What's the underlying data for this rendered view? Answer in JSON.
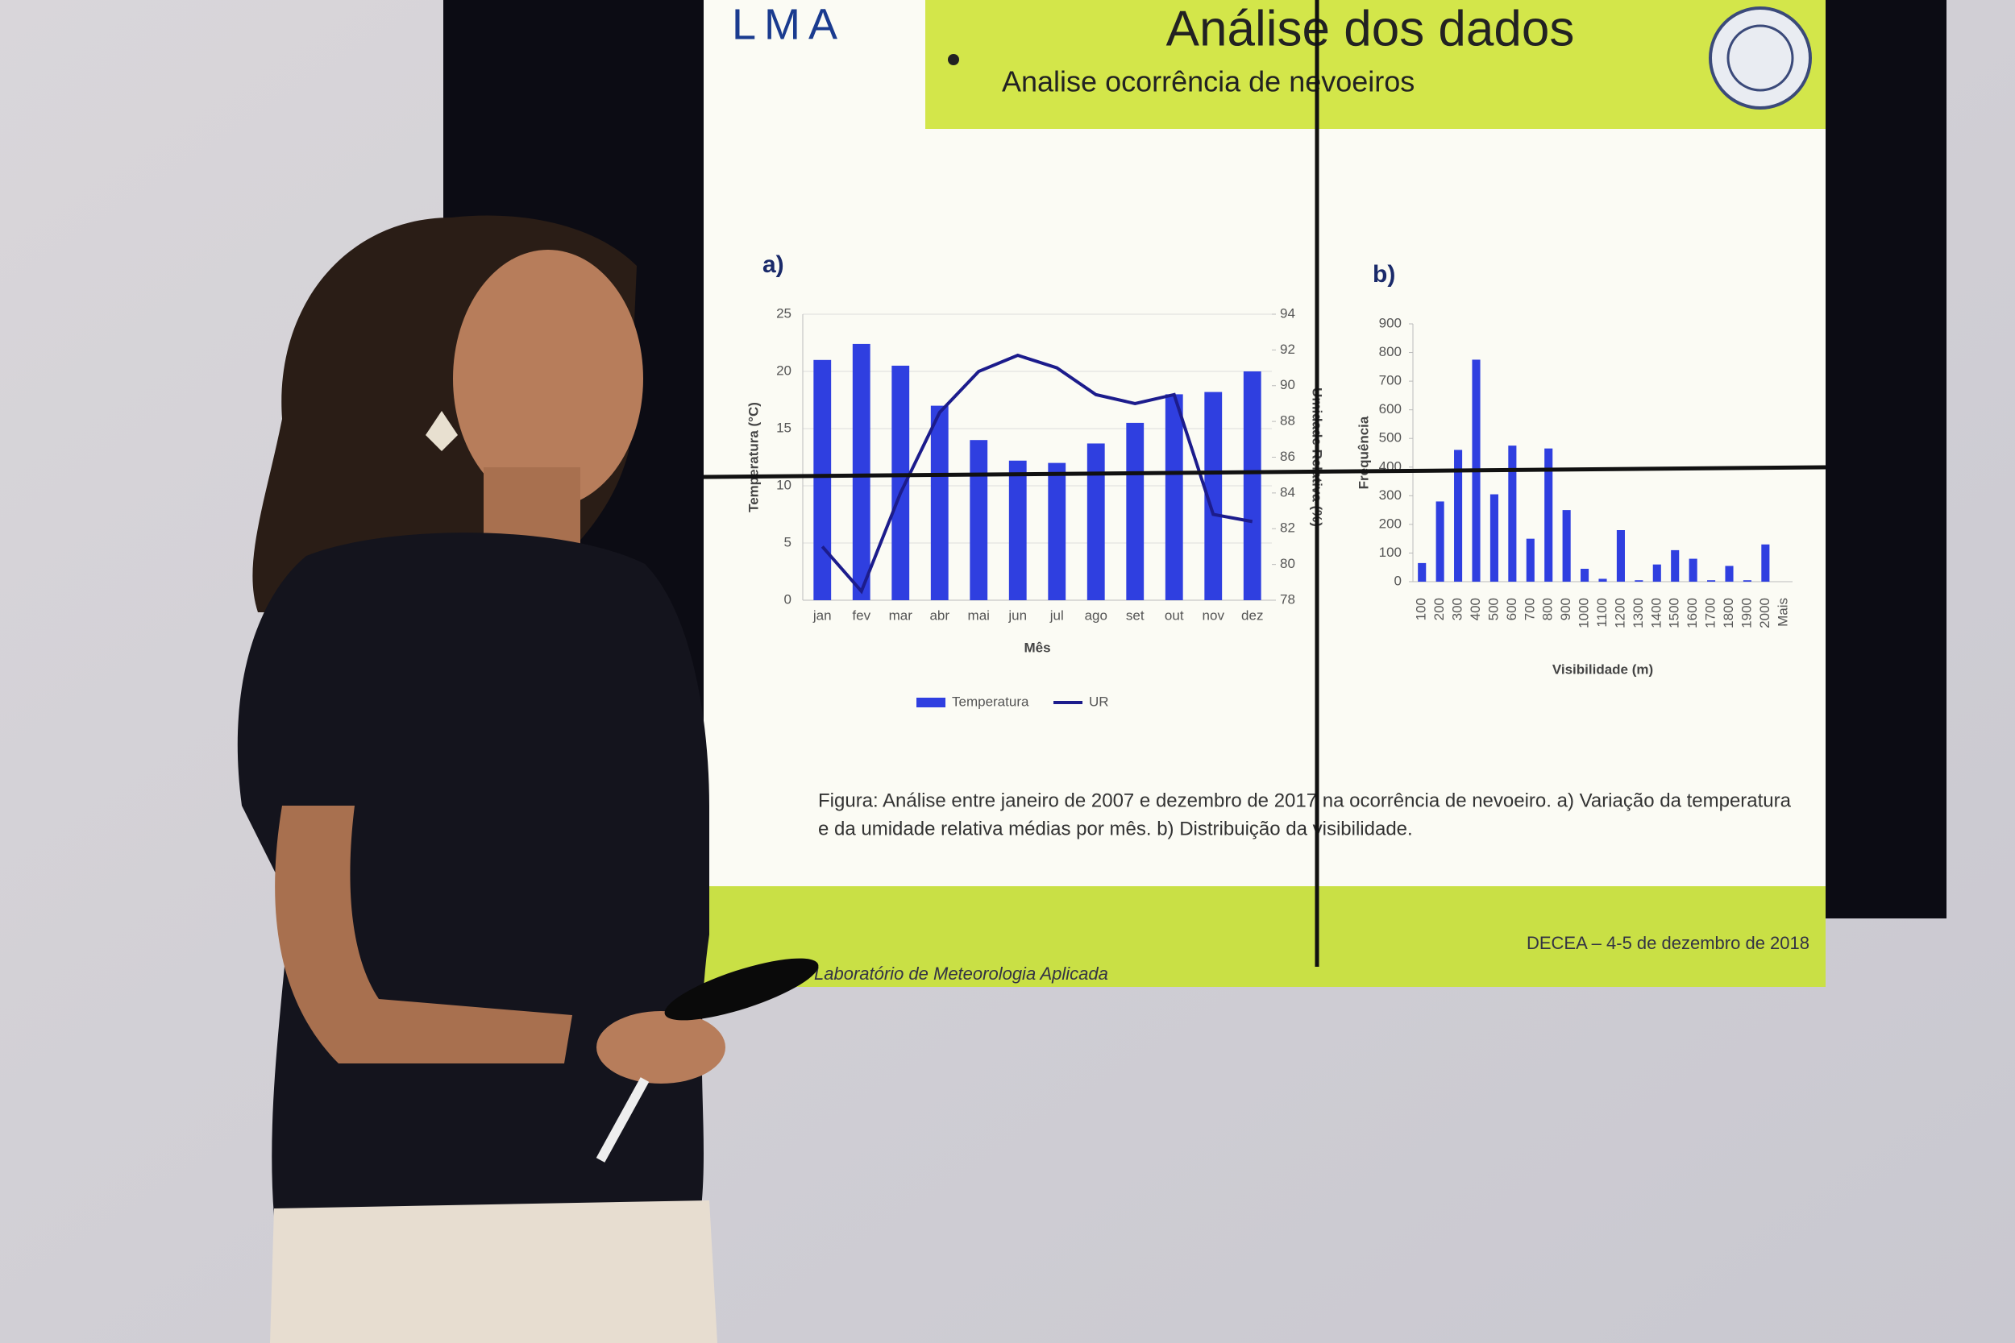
{
  "slide": {
    "logo": "LMA",
    "title": "Análise dos dados",
    "bullet": "Analise ocorrência de nevoeiros",
    "caption_line1": "Figura: Análise entre janeiro de 2007 e dezembro de 2017 na ocorrência de nevoeiro. a) Variação da temperatura",
    "caption_line2": "e da umidade relativa médias por mês. b) Distribuição da visibilidade.",
    "footer_left": "Laboratório de Meteorologia Aplicada",
    "footer_right": "DECEA – 4-5 de dezembro de 2018"
  },
  "chart_data": [
    {
      "type": "bar",
      "label": "a)",
      "categories": [
        "jan",
        "fev",
        "mar",
        "abr",
        "mai",
        "jun",
        "jul",
        "ago",
        "set",
        "out",
        "nov",
        "dez"
      ],
      "series": [
        {
          "name": "Temperatura",
          "color": "#2f3fe0",
          "values": [
            21,
            22.4,
            20.5,
            17,
            14,
            12.2,
            12,
            13.7,
            15.5,
            18,
            18.2,
            20
          ]
        },
        {
          "name": "UR",
          "color": "#1c1c8c",
          "type": "line",
          "axis": "y2",
          "values": [
            81,
            78.5,
            84,
            88.5,
            90.8,
            91.7,
            91,
            89.5,
            89,
            89.5,
            82.8,
            82.4
          ]
        }
      ],
      "x_label": "Mês",
      "y_label": "Temperatura (°C)",
      "y2_label": "Umidade Relativa (%)",
      "ylim": [
        0,
        25
      ],
      "yticks": [
        0,
        5,
        10,
        15,
        20,
        25
      ],
      "y2lim": [
        78,
        94
      ],
      "y2ticks": [
        78,
        80,
        82,
        84,
        86,
        88,
        90,
        92,
        94
      ],
      "grid": true,
      "legend": "bottom"
    },
    {
      "type": "bar",
      "label": "b)",
      "categories": [
        "100",
        "200",
        "300",
        "400",
        "500",
        "600",
        "700",
        "800",
        "900",
        "1000",
        "1100",
        "1200",
        "1300",
        "1400",
        "1500",
        "1600",
        "1700",
        "1800",
        "1900",
        "2000",
        "Mais"
      ],
      "values": [
        65,
        280,
        460,
        775,
        305,
        475,
        150,
        465,
        250,
        45,
        10,
        180,
        5,
        60,
        110,
        80,
        5,
        55,
        5,
        130,
        0
      ],
      "color": "#2f3fe0",
      "x_label": "Visibilidade (m)",
      "y_label": "Frequência",
      "ylim": [
        0,
        900
      ],
      "yticks": [
        0,
        100,
        200,
        300,
        400,
        500,
        600,
        700,
        800,
        900
      ],
      "grid": false,
      "x_label_rotation": -90
    }
  ]
}
